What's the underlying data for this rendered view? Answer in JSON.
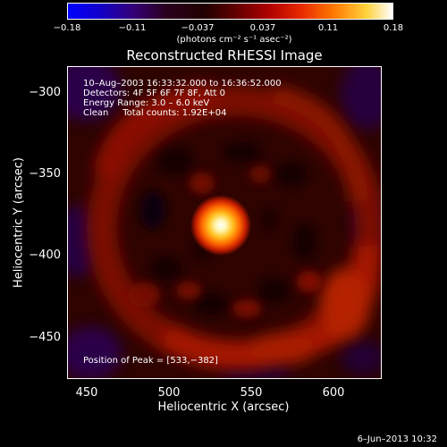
{
  "colorbar": {
    "tick_labels": [
      "−0.18",
      "−0.11",
      "−0.037",
      "0.037",
      "0.11",
      "0.18"
    ],
    "unit_label": "(photons cm⁻² s⁻¹ asec⁻²)"
  },
  "plot": {
    "title": "Reconstructed RHESSI Image",
    "info_lines": [
      "10–Aug–2003 16:33:32.000 to 16:36:52.000",
      "Detectors: 4F 5F 6F 7F 8F, Att 0",
      "Energy Range: 3.0 – 6.0 keV",
      "Clean     Total counts: 1.92E+04"
    ],
    "peak_label": "Position of Peak = [533,−382]"
  },
  "axes": {
    "x_label": "Heliocentric X (arcsec)",
    "y_label": "Heliocentric Y (arcsec)",
    "x_ticks": [
      "450",
      "500",
      "550",
      "600"
    ],
    "y_ticks": [
      "−300",
      "−350",
      "−400",
      "−450"
    ]
  },
  "footer": {
    "timestamp": "6–Jun–2013 10:32"
  }
}
